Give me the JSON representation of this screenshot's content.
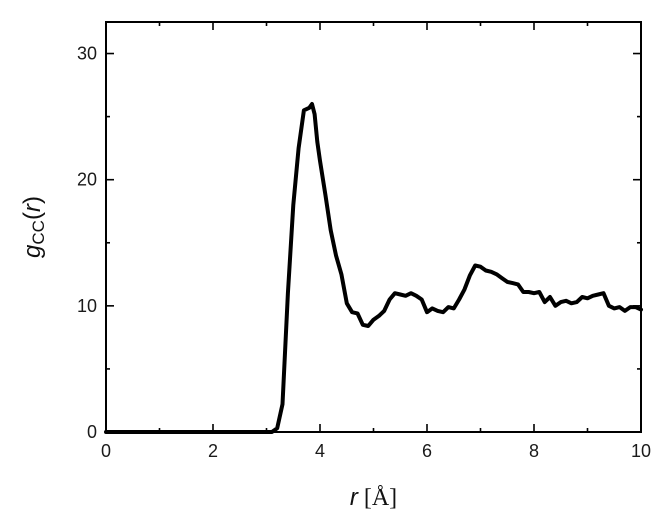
{
  "chart_data": {
    "type": "line",
    "title": "",
    "xlabel": {
      "symbol": "r",
      "unit": " [Å]"
    },
    "ylabel": {
      "symbol": "g",
      "subscript": "CC",
      "arg_open": "(",
      "arg": "r",
      "arg_close": ")"
    },
    "xlim": [
      0,
      10
    ],
    "ylim": [
      0,
      32.5
    ],
    "xticks": [
      0,
      2,
      4,
      6,
      8,
      10
    ],
    "yticks": [
      0,
      10,
      20,
      30
    ],
    "grid": false,
    "legend": "none",
    "line_color": "#000000",
    "series": [
      {
        "x": [
          0,
          1,
          2,
          3,
          3.1,
          3.2,
          3.3,
          3.4,
          3.5,
          3.6,
          3.7,
          3.8,
          3.85,
          3.9,
          3.95,
          4.0,
          4.1,
          4.2,
          4.3,
          4.4,
          4.5,
          4.6,
          4.7,
          4.8,
          4.9,
          5.0,
          5.1,
          5.2,
          5.3,
          5.4,
          5.5,
          5.6,
          5.7,
          5.8,
          5.9,
          6.0,
          6.1,
          6.2,
          6.3,
          6.4,
          6.5,
          6.6,
          6.7,
          6.8,
          6.9,
          7.0,
          7.1,
          7.2,
          7.3,
          7.4,
          7.5,
          7.6,
          7.7,
          7.8,
          7.9,
          8.0,
          8.1,
          8.2,
          8.3,
          8.4,
          8.5,
          8.6,
          8.7,
          8.8,
          8.9,
          9.0,
          9.1,
          9.2,
          9.3,
          9.4,
          9.5,
          9.6,
          9.7,
          9.8,
          9.9,
          10.0
        ],
        "y": [
          0,
          0,
          0,
          0,
          0.0,
          0.3,
          2.2,
          11.0,
          18.0,
          22.5,
          25.5,
          25.7,
          26.0,
          25.2,
          23.0,
          21.5,
          18.8,
          16.0,
          14.0,
          12.5,
          10.2,
          9.5,
          9.4,
          8.5,
          8.4,
          8.9,
          9.2,
          9.6,
          10.5,
          11.0,
          10.9,
          10.8,
          11.0,
          10.8,
          10.5,
          9.5,
          9.8,
          9.6,
          9.5,
          9.9,
          9.8,
          10.5,
          11.3,
          12.4,
          13.2,
          13.1,
          12.8,
          12.7,
          12.5,
          12.2,
          11.9,
          11.8,
          11.7,
          11.1,
          11.1,
          11.0,
          11.1,
          10.3,
          10.7,
          10.0,
          10.3,
          10.4,
          10.2,
          10.3,
          10.7,
          10.6,
          10.8,
          10.9,
          11.0,
          10.0,
          9.8,
          9.9,
          9.6,
          9.9,
          9.9,
          9.7
        ]
      }
    ]
  }
}
